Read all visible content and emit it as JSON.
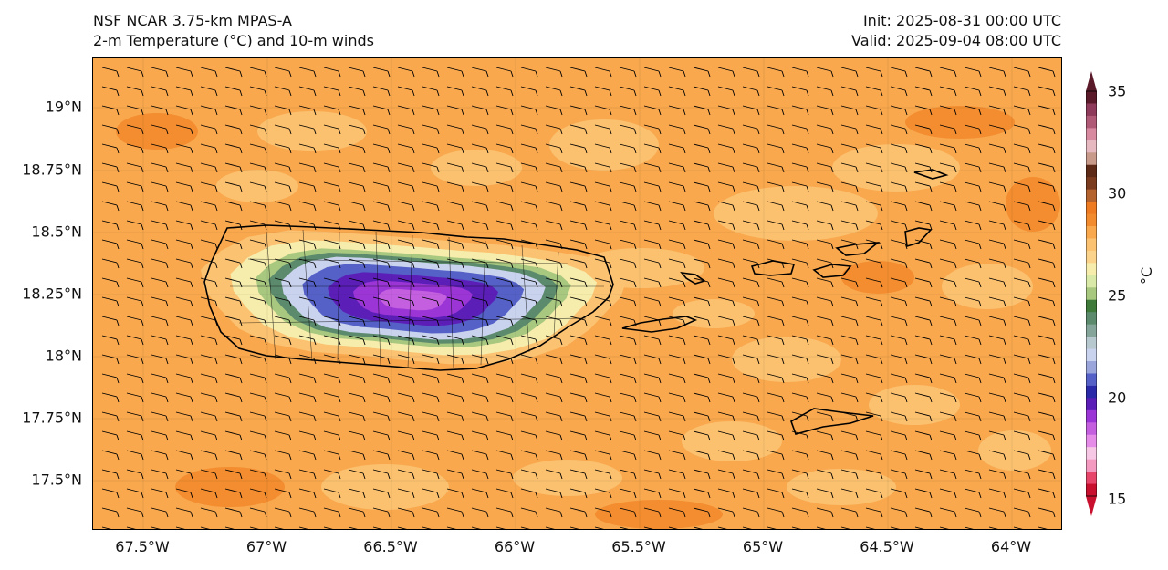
{
  "header": {
    "model": "NSF NCAR 3.75-km MPAS-A",
    "field": "2-m Temperature (°C) and 10-m winds",
    "init": "Init: 2025-08-31 00:00 UTC",
    "valid": "Valid: 2025-09-04 08:00 UTC"
  },
  "axes": {
    "y_ticks": [
      "19°N",
      "18.75°N",
      "18.5°N",
      "18.25°N",
      "18°N",
      "17.75°N",
      "17.5°N"
    ],
    "x_ticks": [
      "67.5°W",
      "67°W",
      "66.5°W",
      "66°W",
      "65.5°W",
      "65°W",
      "64.5°W",
      "64°W"
    ]
  },
  "colorbar": {
    "unit": "°C",
    "ticks": [
      "35",
      "30",
      "25",
      "20",
      "15"
    ],
    "range": [
      15,
      35
    ],
    "colors": [
      "#c8102e",
      "#e8456a",
      "#f49ac1",
      "#f7c8e6",
      "#e58ce8",
      "#c45fe0",
      "#9b35d6",
      "#5b1fb8",
      "#2a2aa8",
      "#5561c7",
      "#9aa6db",
      "#c9d3ee",
      "#b8c8cf",
      "#86a59a",
      "#5c8a6c",
      "#3f7a3a",
      "#a8c880",
      "#d8e9a8",
      "#f6ecab",
      "#fbd38a",
      "#fbc271",
      "#f9a84e",
      "#f28a2e",
      "#ee7a22",
      "#b4622e",
      "#7a3b1e",
      "#5c2a16",
      "#c79a8a",
      "#e6b8c0",
      "#d78aa0",
      "#b05a78",
      "#8e3a5a",
      "#5a1a2a"
    ]
  },
  "map": {
    "field_colors": {
      "ocean_warm": "#f9a84e",
      "ocean_cool": "#fbc271",
      "coast_pale": "#f6ecab",
      "green_band": "#5c8a6c",
      "light_green": "#a8c880",
      "grey_blue": "#c9d3ee",
      "blue": "#5561c7",
      "indigo": "#5b1fb8",
      "purple": "#9b35d6",
      "magenta": "#c45fe0"
    },
    "wind_barb": "westward easterly-wind barbs"
  }
}
